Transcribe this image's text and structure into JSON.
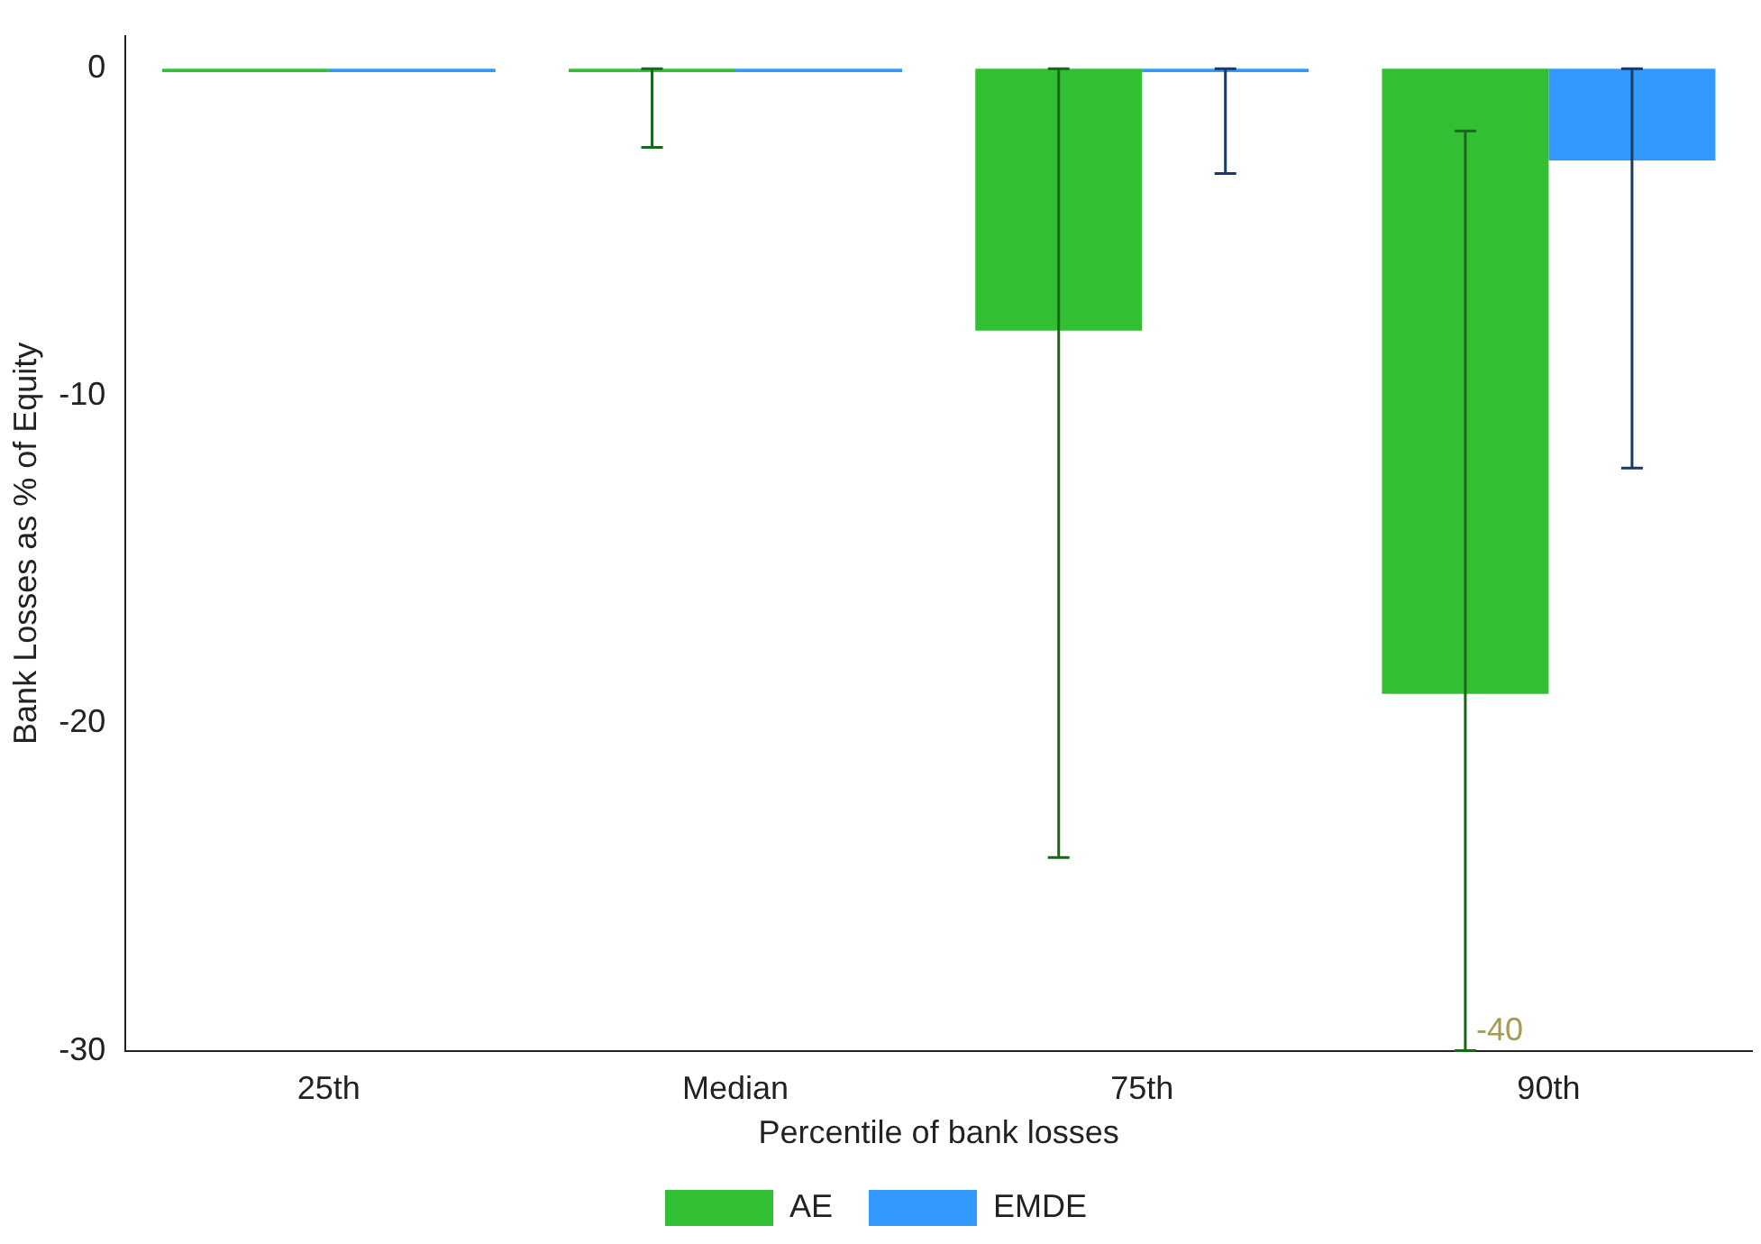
{
  "chart_data": {
    "type": "bar",
    "xlabel": "Percentile of bank losses",
    "ylabel": "Bank Losses as % of Equity",
    "categories": [
      "25th",
      "Median",
      "75th",
      "90th"
    ],
    "series": [
      {
        "name": "AE",
        "color": "#33bf33",
        "values": [
          -0.1,
          -0.1,
          -8.0,
          -19.1
        ],
        "errors": [
          null,
          [
            -2.4,
            0
          ],
          [
            -24.1,
            0
          ],
          [
            -30,
            -1.9
          ]
        ]
      },
      {
        "name": "EMDE",
        "color": "#3399ff",
        "values": [
          -0.1,
          -0.1,
          -0.1,
          -2.8
        ],
        "errors": [
          null,
          null,
          [
            -3.2,
            0
          ],
          [
            -12.2,
            0
          ]
        ]
      }
    ],
    "ylim": [
      -30,
      1
    ],
    "yticks": [
      0,
      -10,
      -20,
      -30
    ],
    "grid": false,
    "legend": "bottom",
    "annotations": [
      "-40"
    ]
  }
}
